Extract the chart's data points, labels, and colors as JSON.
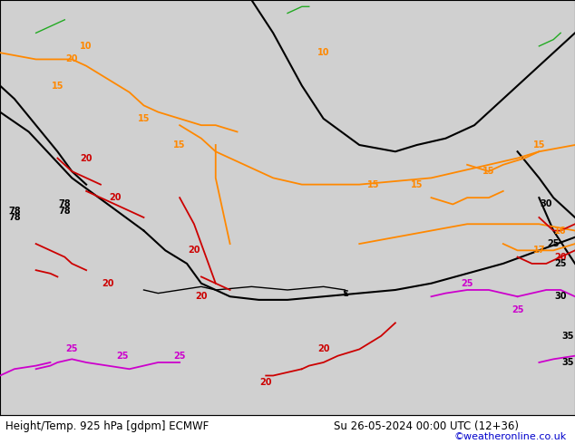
{
  "title_left": "Height/Temp. 925 hPa [gdpm] ECMWF",
  "title_right": "Su 26-05-2024 00:00 UTC (12+36)",
  "credit": "©weatheronline.co.uk",
  "fig_width": 6.34,
  "fig_height": 4.9,
  "dpi": 100,
  "ocean_color": "#d0d0d0",
  "land_color": "#c8e8c0",
  "border_color": "#a0a0a0",
  "bottom_bar_color": "#ffffff",
  "title_fontsize": 8.5,
  "credit_fontsize": 8,
  "credit_color": "#0000cc",
  "lon_min": -80,
  "lon_max": 0,
  "lat_min": 2,
  "lat_max": 65,
  "lon_ticks": [
    -80,
    -70,
    -60,
    -50,
    -40,
    -30,
    -20,
    -10,
    0
  ],
  "lat_ticks": [
    10,
    20,
    30,
    40,
    50,
    60
  ],
  "grid_color": "#aaaaaa",
  "grid_lw": 0.5,
  "black_lw": 1.5,
  "orange_lw": 1.3,
  "red_lw": 1.3,
  "magenta_lw": 1.3,
  "contour_black": "#000000",
  "contour_orange": "#ff8800",
  "contour_red": "#cc0000",
  "contour_magenta": "#cc00cc",
  "contour_green": "#22aa22",
  "label_fontsize": 7
}
